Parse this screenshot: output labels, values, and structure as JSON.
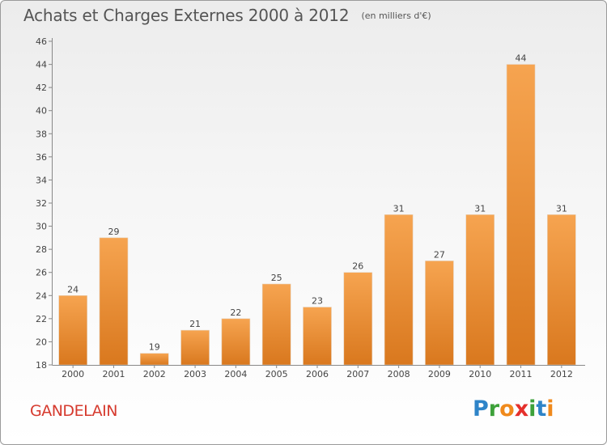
{
  "header": {
    "title": "Achats et Charges Externes 2000 à 2012",
    "subtitle": "(en milliers d'€)"
  },
  "place_name": "GANDELAIN",
  "logo": {
    "text": "Proxiti",
    "letters": [
      {
        "ch": "P",
        "color": "#2e84c8"
      },
      {
        "ch": "r",
        "color": "#3da13a"
      },
      {
        "ch": "o",
        "color": "#f08a1c"
      },
      {
        "ch": "x",
        "color": "#e5302c"
      },
      {
        "ch": "i",
        "color": "#3da13a"
      },
      {
        "ch": "t",
        "color": "#2e84c8"
      },
      {
        "ch": "i",
        "color": "#f08a1c"
      }
    ]
  },
  "chart_data": {
    "type": "bar",
    "title": "Achats et Charges Externes 2000 à 2012",
    "subtitle": "(en milliers d'€)",
    "categories": [
      "2000",
      "2001",
      "2002",
      "2003",
      "2004",
      "2005",
      "2006",
      "2007",
      "2008",
      "2009",
      "2010",
      "2011",
      "2012"
    ],
    "values": [
      24,
      29,
      19,
      21,
      22,
      25,
      23,
      26,
      31,
      27,
      31,
      44,
      31
    ],
    "ylim": [
      18,
      46
    ],
    "yticks": [
      18,
      20,
      22,
      24,
      26,
      28,
      30,
      32,
      34,
      36,
      38,
      40,
      42,
      44,
      46
    ],
    "grid": false,
    "legend": "none",
    "bar_color_top": "#f6a450",
    "bar_color_bottom": "#d9781e"
  }
}
